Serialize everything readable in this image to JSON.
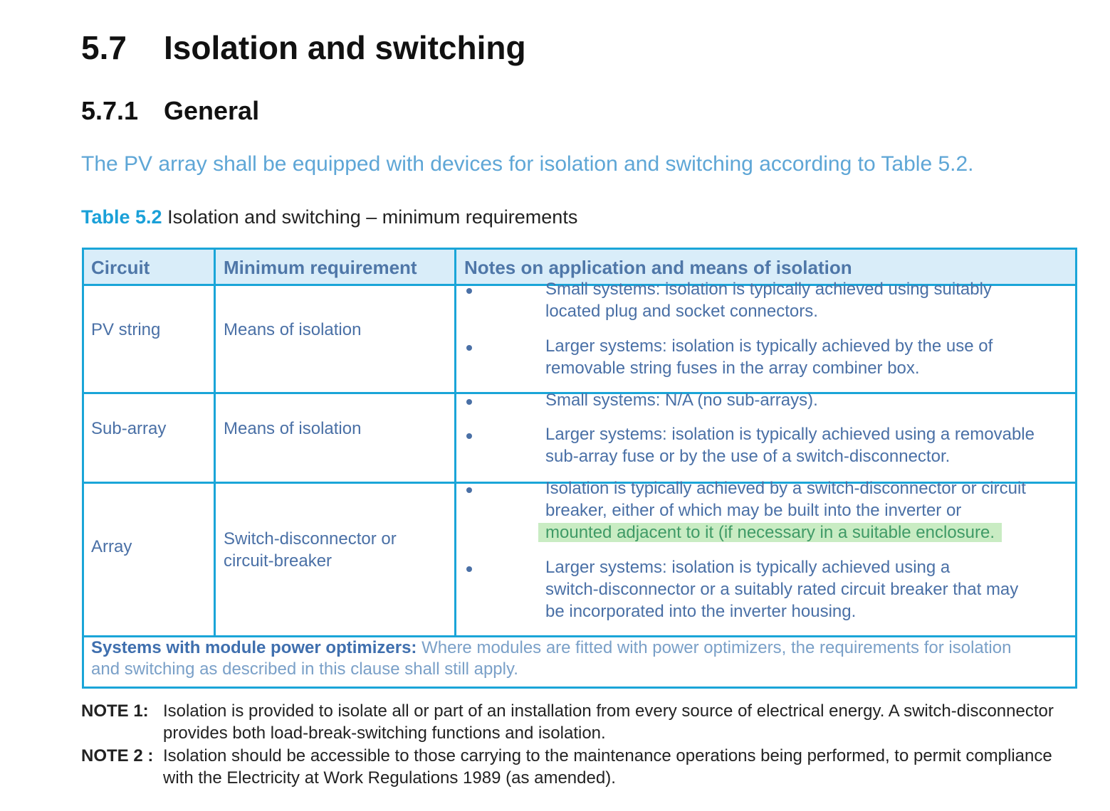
{
  "section": {
    "number": "5.7",
    "title": "Isolation and switching"
  },
  "subsection": {
    "number": "5.7.1",
    "title": "General"
  },
  "intro": "The PV array shall be equipped with devices for isolation and switching according to Table 5.2.",
  "caption": {
    "label": "Table 5.2",
    "text": " Isolation and switching – minimum requirements"
  },
  "table": {
    "headers": [
      "Circuit",
      "Minimum requirement",
      "Notes on application and means of isolation"
    ],
    "rows": [
      {
        "circuit": "PV string",
        "requirement": [
          "Means of isolation"
        ],
        "notes": [
          [
            "Small systems: isolation is typically achieved using suitably",
            "located plug and socket connectors."
          ],
          [
            "Larger systems: isolation is typically achieved by the use of",
            "removable string fuses in the array combiner box."
          ]
        ]
      },
      {
        "circuit": "Sub-array",
        "requirement": [
          "Means of isolation"
        ],
        "notes": [
          [
            "Small systems: N/A (no sub-arrays)."
          ],
          [
            "Larger systems: isolation is typically achieved using a removable",
            "sub-array fuse or by the use of a switch-disconnector."
          ]
        ]
      },
      {
        "circuit": "Array",
        "requirement": [
          "Switch-disconnector or",
          "circuit-breaker"
        ],
        "notes": [
          [
            "Isolation is typically achieved by a switch-disconnector or circuit",
            "breaker, either of which may be built into the inverter or",
            "mounted adjacent to it (if necessary in a suitable enclosure."
          ],
          [
            "Larger systems: isolation is typically achieved using a",
            "switch-disconnector or a suitably rated circuit breaker that may",
            "be incorporated into the inverter housing."
          ]
        ]
      }
    ],
    "footer": {
      "bold": "Systems with module power optimizers:",
      "line1": " Where modules are fitted with power optimizers, the requirements for isolation",
      "line2": "and switching as described in this clause shall still apply."
    }
  },
  "notes": [
    {
      "label": "NOTE 1:",
      "lines": [
        "Isolation is provided to isolate all or part of an installation from every source of electrical energy. A switch-disconnector",
        "provides both load-break-switching functions and isolation."
      ]
    },
    {
      "label": "NOTE 2 :",
      "lines": [
        "Isolation should be accessible to those carrying to the maintenance operations being performed, to permit compliance",
        "with the Electricity at Work Regulations 1989 (as amended)."
      ]
    }
  ],
  "colors": {
    "border": "#1aa5d8",
    "header_bg": "#d9edf9",
    "table_text": "#4a70a6",
    "highlight": "#c9ecc3"
  }
}
